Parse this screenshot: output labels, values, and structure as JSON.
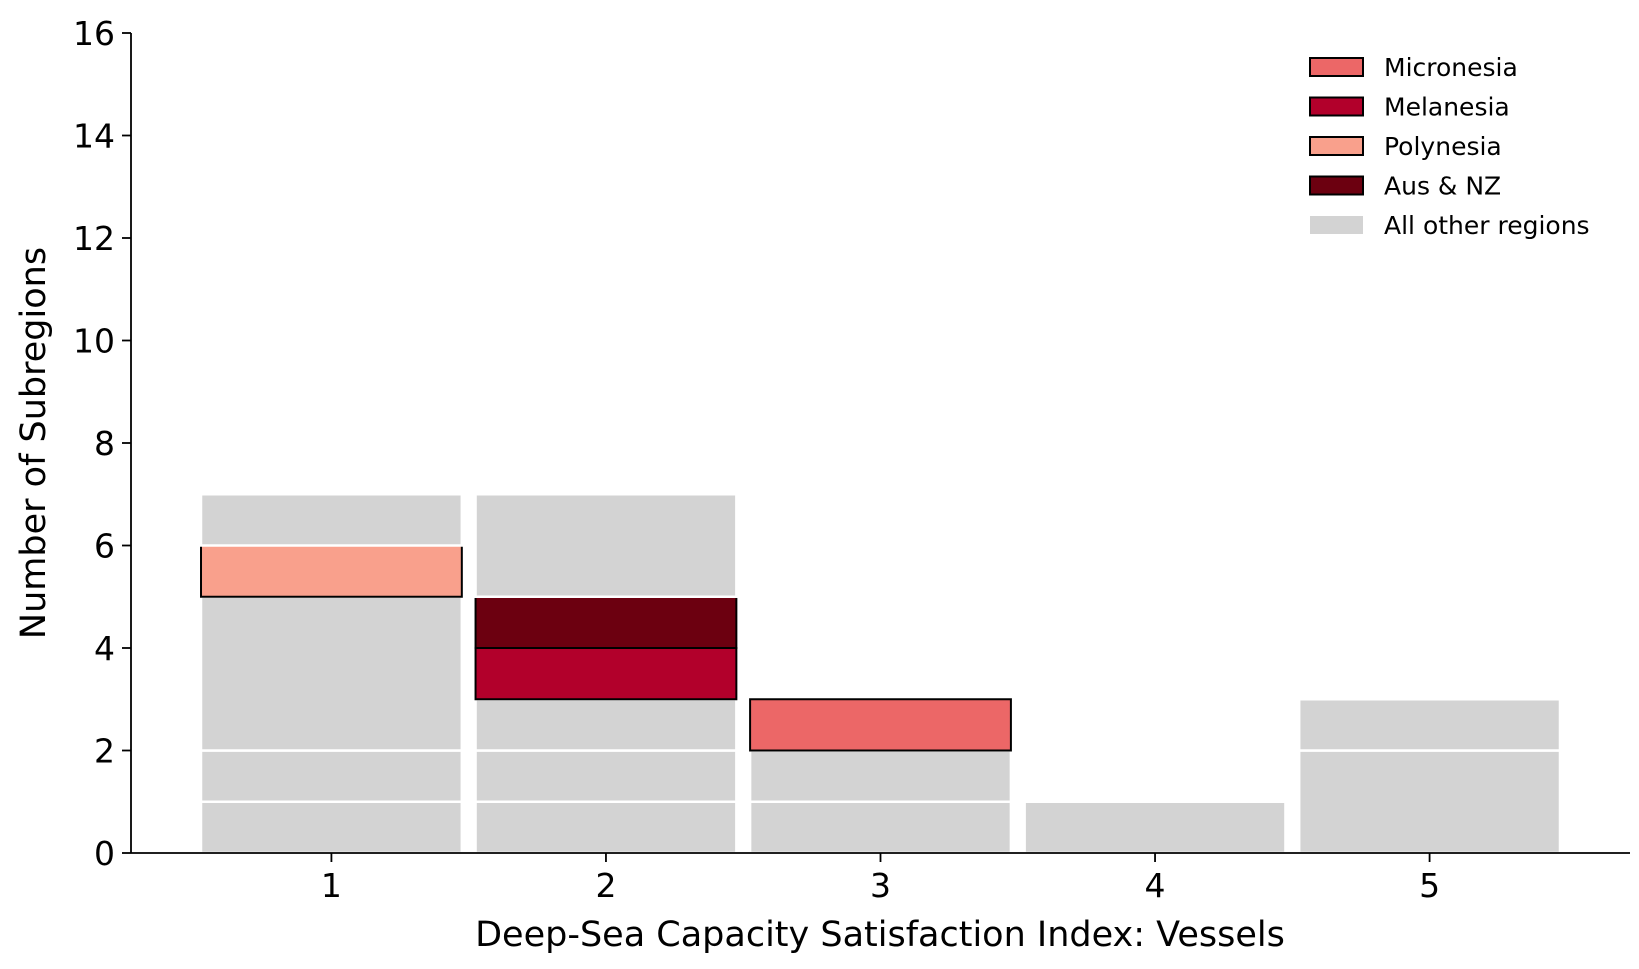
{
  "chart_data": {
    "type": "bar",
    "stacked": true,
    "xlabel": "Deep-Sea Capacity Satisfaction Index: Vessels",
    "ylabel": "Number of Subregions",
    "categories": [
      "1",
      "2",
      "3",
      "4",
      "5"
    ],
    "ylim": [
      0,
      16
    ],
    "yticks": [
      "0",
      "2",
      "4",
      "6",
      "8",
      "10",
      "12",
      "14",
      "16"
    ],
    "grid": false,
    "legend_position": "top-right",
    "highlight_series": [
      {
        "name": "Micronesia",
        "color": "#ec6767",
        "x": "3",
        "count": 1
      },
      {
        "name": "Melanesia",
        "color": "#b2002b",
        "x": "2",
        "count": 1
      },
      {
        "name": "Polynesia",
        "color": "#f9a08c",
        "x": "1",
        "count": 1
      },
      {
        "name": "Aus & NZ",
        "color": "#6c0010",
        "x": "2",
        "count": 1
      }
    ],
    "other_series": {
      "name": "All other regions",
      "color": "#d3d3d3"
    },
    "stacks": [
      {
        "category": "1",
        "segments": [
          {
            "series": "All other regions",
            "value": 1
          },
          {
            "series": "All other regions",
            "value": 1
          },
          {
            "series": "All other regions",
            "value": 3
          },
          {
            "series": "Polynesia",
            "value": 1
          },
          {
            "series": "All other regions",
            "value": 1
          }
        ]
      },
      {
        "category": "2",
        "segments": [
          {
            "series": "All other regions",
            "value": 1
          },
          {
            "series": "All other regions",
            "value": 1
          },
          {
            "series": "All other regions",
            "value": 1
          },
          {
            "series": "Melanesia",
            "value": 1
          },
          {
            "series": "Aus & NZ",
            "value": 1
          },
          {
            "series": "All other regions",
            "value": 2
          }
        ]
      },
      {
        "category": "3",
        "segments": [
          {
            "series": "All other regions",
            "value": 1
          },
          {
            "series": "All other regions",
            "value": 1
          },
          {
            "series": "Micronesia",
            "value": 1
          }
        ]
      },
      {
        "category": "4",
        "segments": [
          {
            "series": "All other regions",
            "value": 1
          }
        ]
      },
      {
        "category": "5",
        "segments": [
          {
            "series": "All other regions",
            "value": 2
          },
          {
            "series": "All other regions",
            "value": 1
          }
        ]
      }
    ],
    "totals": [
      7,
      7,
      3,
      1,
      3
    ]
  }
}
